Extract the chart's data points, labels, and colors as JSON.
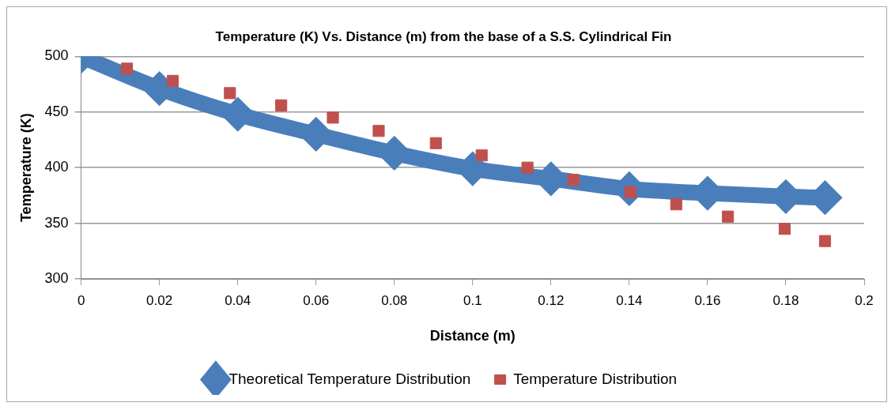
{
  "chart_data": {
    "type": "scatter",
    "title": "Temperature (K) Vs. Distance (m) from the base of a S.S. Cylindrical Fin",
    "xlabel": "Distance (m)",
    "ylabel": "Temperature (K)",
    "xlim": [
      0,
      0.2
    ],
    "xticks": [
      0,
      0.02,
      0.04,
      0.06,
      0.08,
      0.1,
      0.12,
      0.14,
      0.16,
      0.18,
      0.2
    ],
    "ylim": [
      300,
      500
    ],
    "yticks": [
      300,
      350,
      400,
      450,
      500
    ],
    "grid": "y",
    "legend": "bottom",
    "series": [
      {
        "name": "Theoretical Temperature Distribution",
        "type": "line",
        "marker": "diamond",
        "color": "#4a7ebb",
        "x": [
          0,
          0.02,
          0.04,
          0.06,
          0.08,
          0.1,
          0.12,
          0.14,
          0.16,
          0.18,
          0.19
        ],
        "values": [
          500,
          471,
          448,
          430,
          413,
          399,
          390,
          381,
          377,
          374,
          373
        ]
      },
      {
        "name": "Temperature Distribution",
        "marker": "square",
        "color": "#c0504d",
        "x": [
          0.0117,
          0.0234,
          0.038,
          0.0511,
          0.0643,
          0.076,
          0.0906,
          0.1023,
          0.114,
          0.1257,
          0.1403,
          0.152,
          0.1652,
          0.1797,
          0.19
        ],
        "values": [
          489,
          478,
          467,
          456,
          445,
          433,
          422,
          411,
          400,
          389,
          378,
          367,
          356,
          345,
          334
        ]
      }
    ]
  }
}
